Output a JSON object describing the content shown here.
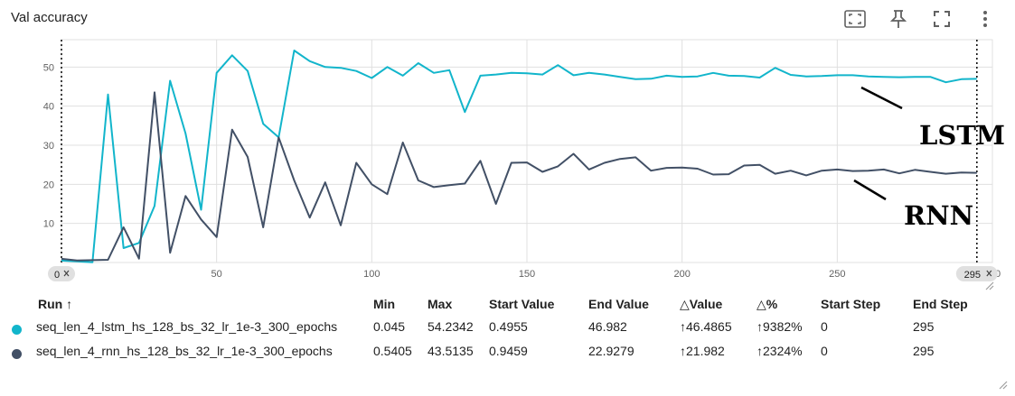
{
  "card": {
    "title": "Val accuracy"
  },
  "toolbar": {
    "icons": [
      "fullscreen-selection-icon",
      "pin-icon",
      "expand-icon",
      "more-vert-icon"
    ]
  },
  "annotations": {
    "lstm": "LSTM",
    "rnn": "RNN"
  },
  "colors": {
    "lstm": "#12b5cb",
    "rnn": "#425066",
    "grid": "#e0e0e0",
    "axis_text": "#616161"
  },
  "chart_data": {
    "type": "line",
    "title": "Val accuracy",
    "xlim": [
      0,
      300
    ],
    "ylim": [
      0,
      57
    ],
    "x_ticks": [
      0,
      50,
      100,
      150,
      200,
      250,
      300
    ],
    "y_ticks": [
      10,
      20,
      30,
      40,
      50
    ],
    "grid": true,
    "range_markers": [
      {
        "value": 0,
        "label": "0"
      },
      {
        "value": 295,
        "label": "295"
      }
    ],
    "x": [
      0,
      5,
      10,
      15,
      20,
      25,
      30,
      35,
      40,
      45,
      50,
      55,
      60,
      65,
      70,
      75,
      80,
      85,
      90,
      95,
      100,
      105,
      110,
      115,
      120,
      125,
      130,
      135,
      140,
      145,
      150,
      155,
      160,
      165,
      170,
      175,
      180,
      185,
      190,
      195,
      200,
      205,
      210,
      215,
      220,
      225,
      230,
      235,
      240,
      245,
      250,
      255,
      260,
      265,
      270,
      275,
      280,
      285,
      290,
      295
    ],
    "series": [
      {
        "name": "seq_len_4_lstm_hs_128_bs_32_lr_1e-3_300_epochs",
        "color": "#12b5cb",
        "values": [
          0.4955,
          0.3,
          0.045,
          43,
          3.7,
          5,
          14.5,
          46.5,
          33,
          13.5,
          48.5,
          53,
          49,
          35.5,
          32,
          54.2342,
          51.5,
          50,
          49.8,
          49,
          47.2,
          50,
          47.8,
          51,
          48.5,
          49.2,
          38.5,
          47.8,
          48.1,
          48.5,
          48.4,
          48.1,
          50.5,
          47.9,
          48.5,
          48.1,
          47.5,
          46.9,
          47.0,
          47.8,
          47.5,
          47.6,
          48.5,
          47.8,
          47.7,
          47.3,
          49.8,
          48.0,
          47.6,
          47.7,
          47.9,
          47.9,
          47.6,
          47.5,
          47.4,
          47.5,
          47.5,
          46.1,
          46.9,
          46.982
        ]
      },
      {
        "name": "seq_len_4_rnn_hs_128_bs_32_lr_1e-3_300_epochs",
        "color": "#425066",
        "values": [
          0.9459,
          0.5405,
          0.6,
          0.7,
          9,
          1,
          43.5135,
          2.5,
          17,
          11,
          6.5,
          34,
          27,
          9,
          32,
          21,
          11.5,
          20.5,
          9.5,
          25.5,
          20,
          17.5,
          30.7,
          21,
          19.3,
          19.8,
          20.2,
          26,
          15,
          25.5,
          25.6,
          23.2,
          24.6,
          27.8,
          23.8,
          25.5,
          26.5,
          26.9,
          23.5,
          24.2,
          24.3,
          24.0,
          22.5,
          22.6,
          24.8,
          25.0,
          22.7,
          23.5,
          22.3,
          23.5,
          23.8,
          23.4,
          23.5,
          23.8,
          22.8,
          23.7,
          23.2,
          22.7,
          23.0,
          22.9279
        ]
      }
    ]
  },
  "table": {
    "headers": {
      "run": "Run ↑",
      "min": "Min",
      "max": "Max",
      "start_value": "Start Value",
      "end_value": "End Value",
      "delta_value": "△Value",
      "delta_pct": "△%",
      "start_step": "Start Step",
      "end_step": "End Step"
    },
    "rows": [
      {
        "color": "#12b5cb",
        "run": "seq_len_4_lstm_hs_128_bs_32_lr_1e-3_300_epochs",
        "min": "0.045",
        "max": "54.2342",
        "start_value": "0.4955",
        "end_value": "46.982",
        "delta_value": "↑46.4865",
        "delta_pct": "↑9382%",
        "start_step": "0",
        "end_step": "295"
      },
      {
        "color": "#425066",
        "run": "seq_len_4_rnn_hs_128_bs_32_lr_1e-3_300_epochs",
        "min": "0.5405",
        "max": "43.5135",
        "start_value": "0.9459",
        "end_value": "22.9279",
        "delta_value": "↑21.982",
        "delta_pct": "↑2324%",
        "start_step": "0",
        "end_step": "295"
      }
    ]
  }
}
